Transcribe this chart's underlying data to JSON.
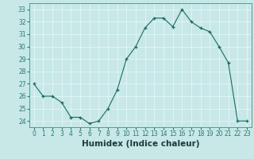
{
  "x": [
    0,
    1,
    2,
    3,
    4,
    5,
    6,
    7,
    8,
    9,
    10,
    11,
    12,
    13,
    14,
    15,
    16,
    17,
    18,
    19,
    20,
    21,
    22,
    23
  ],
  "y": [
    27,
    26,
    26,
    25.5,
    24.3,
    24.3,
    23.8,
    24,
    25,
    26.5,
    29,
    30,
    31.5,
    32.3,
    32.3,
    31.6,
    33,
    32,
    31.5,
    31.2,
    30,
    28.7,
    24,
    24
  ],
  "xlabel": "Humidex (Indice chaleur)",
  "ylim": [
    23.5,
    33.5
  ],
  "xlim": [
    -0.5,
    23.5
  ],
  "yticks": [
    24,
    25,
    26,
    27,
    28,
    29,
    30,
    31,
    32,
    33
  ],
  "xticks": [
    0,
    1,
    2,
    3,
    4,
    5,
    6,
    7,
    8,
    9,
    10,
    11,
    12,
    13,
    14,
    15,
    16,
    17,
    18,
    19,
    20,
    21,
    22,
    23
  ],
  "line_color": "#1a6b5a",
  "marker": "+",
  "plot_bg": "#c8e8e8",
  "fig_bg": "#c8e8e8",
  "bottom_bar_color": "#2a7a6a",
  "tick_label_color": "#2a7a6a",
  "grid_color": "#e8f8f8",
  "xlabel_color": "#1a3a3a",
  "tick_fontsize": 5.5,
  "xlabel_fontsize": 7.5
}
